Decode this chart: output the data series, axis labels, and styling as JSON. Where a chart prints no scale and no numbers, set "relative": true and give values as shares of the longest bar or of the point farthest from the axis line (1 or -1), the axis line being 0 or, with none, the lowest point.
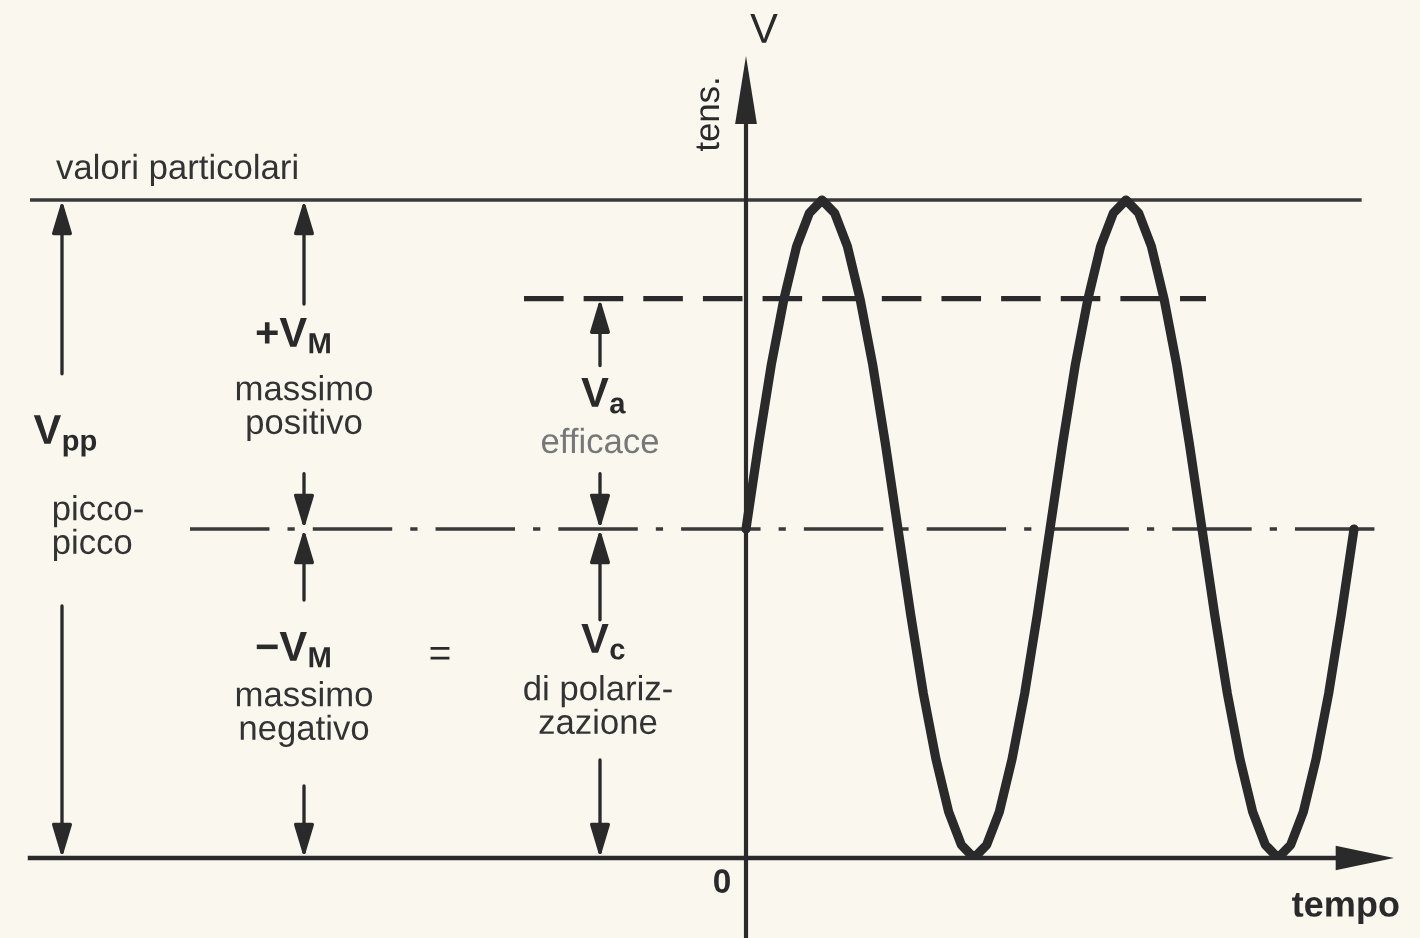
{
  "chart_data": {
    "type": "line",
    "relative": true,
    "xlabel": "tempo",
    "ylabel": "tens.",
    "categories": [
      null,
      null,
      null,
      null,
      null,
      null,
      null,
      null,
      null,
      null,
      null,
      null,
      null,
      null,
      null,
      null,
      null,
      null,
      null,
      null,
      null,
      null,
      null,
      null,
      null,
      null,
      null,
      null,
      null,
      null,
      null,
      null,
      null,
      null,
      null,
      null,
      null,
      null,
      null,
      null,
      null,
      null,
      null,
      null,
      null,
      null,
      null,
      null,
      null
    ],
    "series": [
      {
        "color": "#2a2a2a",
        "values": [
          0.5,
          0.63,
          0.75,
          0.85,
          0.93,
          0.98,
          1,
          0.98,
          0.93,
          0.85,
          0.75,
          0.63,
          0.5,
          0.37,
          0.25,
          0.15,
          0.07,
          0.02,
          0,
          0.02,
          0.07,
          0.15,
          0.25,
          0.37,
          0.5,
          0.63,
          0.75,
          0.85,
          0.93,
          0.98,
          1,
          0.98,
          0.93,
          0.85,
          0.75,
          0.63,
          0.5,
          0.37,
          0.25,
          0.15,
          0.07,
          0.02,
          0,
          0.02,
          0.07,
          0.15,
          0.25,
          0.37,
          0.5
        ]
      }
    ],
    "ref_lines": [
      {
        "axis": "y",
        "value": 1,
        "label": "valori particolari",
        "color": "#3a3a3a",
        "line_style": "solid"
      },
      {
        "axis": "y",
        "value": 0.85,
        "color": "#2a2a2a",
        "line_style": "dashed"
      },
      {
        "axis": "y",
        "value": 0.5,
        "color": "#3a3a3a",
        "line_style": "dashdot"
      }
    ],
    "annotations": [
      "+V$_{M}$",
      "massimo\npositivo",
      "V$_{pp}$",
      "picco-\npicco",
      "V$_{a}$",
      "efficace",
      "−V$_{M}$",
      "=",
      "V$_{c}$",
      "massimo\nnegativo",
      "di polariz-\nzazione",
      "0",
      "V"
    ]
  }
}
